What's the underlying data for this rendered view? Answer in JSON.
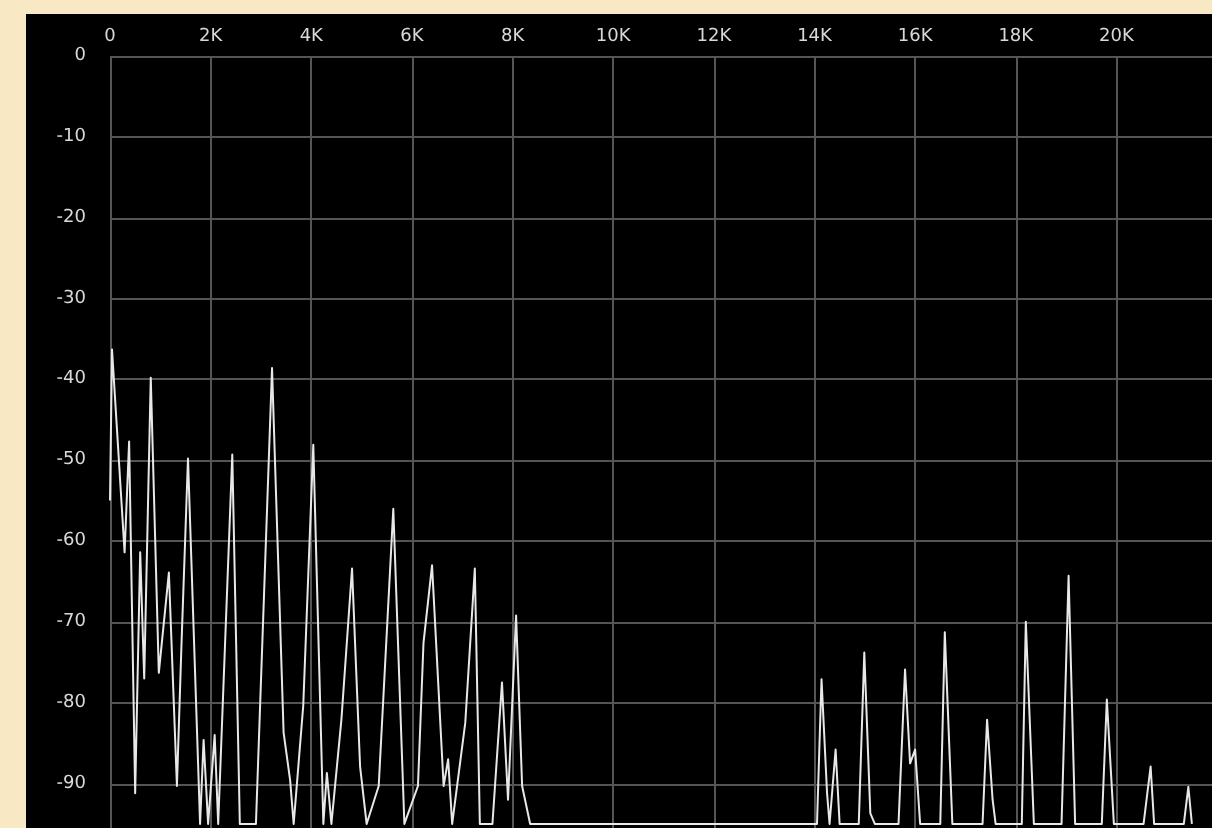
{
  "chart_data": {
    "type": "line",
    "x": [
      0,
      40,
      290,
      380,
      500,
      600,
      680,
      810,
      970,
      1170,
      1330,
      1420,
      1550,
      1790,
      1860,
      1950,
      2080,
      2150,
      2430,
      2580,
      2900,
      3220,
      3450,
      3580,
      3650,
      3840,
      4040,
      4240,
      4310,
      4400,
      4600,
      4810,
      4970,
      5100,
      5340,
      5630,
      5850,
      6120,
      6230,
      6400,
      6630,
      6720,
      6800,
      7060,
      7250,
      7350,
      7600,
      7790,
      7910,
      8070,
      8190,
      8350,
      14050,
      14140,
      14250,
      14300,
      14420,
      14500,
      14880,
      14990,
      15110,
      15200,
      15670,
      15800,
      15900,
      16000,
      16100,
      16500,
      16590,
      16740,
      17340,
      17430,
      17540,
      17600,
      18120,
      18200,
      18360,
      18910,
      19050,
      19180,
      19710,
      19810,
      19950,
      20540,
      20680,
      20750,
      21340,
      21430,
      21500
    ],
    "series": [
      {
        "color": "#e8e8e8",
        "values": [
          -55,
          -36.3,
          -61.4,
          -47.7,
          -91.2,
          -61.4,
          -77,
          -39.8,
          -76.3,
          -63.9,
          -90.3,
          -72.9,
          -49.8,
          -95,
          -84.6,
          -95,
          -84,
          -95,
          -49.3,
          -95,
          -95,
          -38.6,
          -83.7,
          -89.6,
          -95,
          -80.4,
          -48.1,
          -95,
          -88.7,
          -95,
          -82,
          -63.4,
          -87.9,
          -95,
          -90.3,
          -56,
          -95,
          -90.3,
          -72.6,
          -63,
          -90.3,
          -87,
          -95,
          -82.5,
          -63.4,
          -95,
          -95,
          -77.5,
          -92,
          -69.2,
          -90.3,
          -95,
          -95,
          -77.1,
          -91.2,
          -95,
          -85.8,
          -95,
          -95,
          -73.8,
          -93.7,
          -95,
          -95,
          -75.9,
          -87.5,
          -85.8,
          -95,
          -95,
          -71.3,
          -95,
          -95,
          -82.1,
          -92,
          -95,
          -95,
          -70,
          -95,
          -95,
          -64.3,
          -95,
          -95,
          -79.6,
          -95,
          -95,
          -87.9,
          -95,
          -95,
          -90.4,
          -95
        ]
      }
    ],
    "xlim": [
      0,
      21900
    ],
    "xticks": [
      0,
      {
        "value": 2000,
        "label": "2K"
      },
      {
        "value": 4000,
        "label": "4K"
      },
      {
        "value": 6000,
        "label": "6K"
      },
      {
        "value": 8000,
        "label": "8K"
      },
      {
        "value": 10000,
        "label": "10K"
      },
      {
        "value": 12000,
        "label": "12K"
      },
      {
        "value": 14000,
        "label": "14K"
      },
      {
        "value": 16000,
        "label": "16K"
      },
      {
        "value": 18000,
        "label": "18K"
      },
      {
        "value": 20000,
        "label": "20K"
      }
    ],
    "ylim": [
      -95.5,
      0
    ],
    "yticks": [
      0,
      -10,
      -20,
      -30,
      -40,
      -50,
      -60,
      -70,
      -80,
      -90
    ],
    "grid": true,
    "marker": "none",
    "line_style": "solid"
  }
}
